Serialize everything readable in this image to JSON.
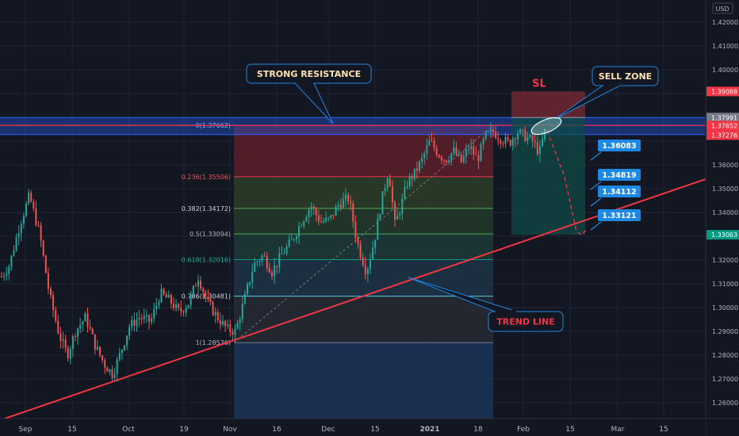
{
  "chart_data": {
    "type": "candlestick",
    "currency_label": "USD",
    "x_ticks": [
      "Sep",
      "15",
      "Oct",
      "19",
      "Nov",
      "16",
      "Dec",
      "15",
      "2021",
      "18",
      "Feb",
      "15",
      "Mar",
      "15"
    ],
    "y_ticks": [
      "1.42000",
      "1.41000",
      "1.40000",
      "1.36000",
      "1.35000",
      "1.34000",
      "1.32000",
      "1.31000",
      "1.30000",
      "1.29000",
      "1.28000",
      "1.27000",
      "1.26000"
    ],
    "ylim": [
      1.2545,
      1.4245
    ],
    "price_badges": [
      {
        "text": "1.39088",
        "value": 1.39088,
        "color": "#f23645"
      },
      {
        "text": "1.37991",
        "value": 1.37991,
        "color": "#787b86"
      },
      {
        "text": "1.37652",
        "value": 1.37652,
        "color": "#f23645"
      },
      {
        "text": "1.37276",
        "value": 1.37276,
        "color": "#f23645"
      },
      {
        "text": "1.33063",
        "value": 1.33063,
        "color": "#089981"
      }
    ],
    "fib_levels": [
      {
        "text": "0(1.37662)",
        "value": 1.37662,
        "line": "#f23645",
        "fill": "#5c1f29",
        "label_color": "#d1d4dc"
      },
      {
        "text": "0.236(1.35506)",
        "value": 1.35506,
        "line": "#f23645",
        "fill": "#2e3d27",
        "label_color": "#f7525f"
      },
      {
        "text": "0.382(1.34172)",
        "value": 1.34172,
        "line": "#4caf50",
        "fill": "#243a2c",
        "label_color": "#d1d4dc"
      },
      {
        "text": "0.5(1.33094)",
        "value": 1.33094,
        "line": "#4caf50",
        "fill": "#1f3a36",
        "label_color": "#b2b5be"
      },
      {
        "text": "0.618(1.32016)",
        "value": 1.32016,
        "line": "#089981",
        "fill": "#1d3447",
        "label_color": "#22ab94"
      },
      {
        "text": "0.786(1.30481)",
        "value": 1.30481,
        "line": "#4dd0e1",
        "fill": "#262a33",
        "label_color": "#d1d4dc"
      },
      {
        "text": "1(1.28526)",
        "value": 1.28526,
        "line": "#787b86",
        "fill": "#1b3558",
        "label_color": "#b2b5be"
      }
    ],
    "resistance_zone": [
      1.37276,
      1.37991
    ],
    "trend_line": [
      [
        1.2545,
        1.3512
      ]
    ],
    "trade_box": {
      "entry": 1.37991,
      "stop": 1.39088,
      "target": 1.33063,
      "sl_label": "SL"
    },
    "target_labels": [
      {
        "text": "1.36083",
        "value": 1.36083
      },
      {
        "text": "1.34819",
        "value": 1.34819
      },
      {
        "text": "1.34112",
        "value": 1.34112
      },
      {
        "text": "1.33121",
        "value": 1.33121
      }
    ],
    "annotations": {
      "resistance": "STRONG RESISTANCE",
      "sell_zone": "SELL ZONE",
      "trend_line": "TREND LINE"
    },
    "colors": {
      "up": "#26a69a",
      "down": "#ef5350",
      "background": "#131722"
    }
  }
}
